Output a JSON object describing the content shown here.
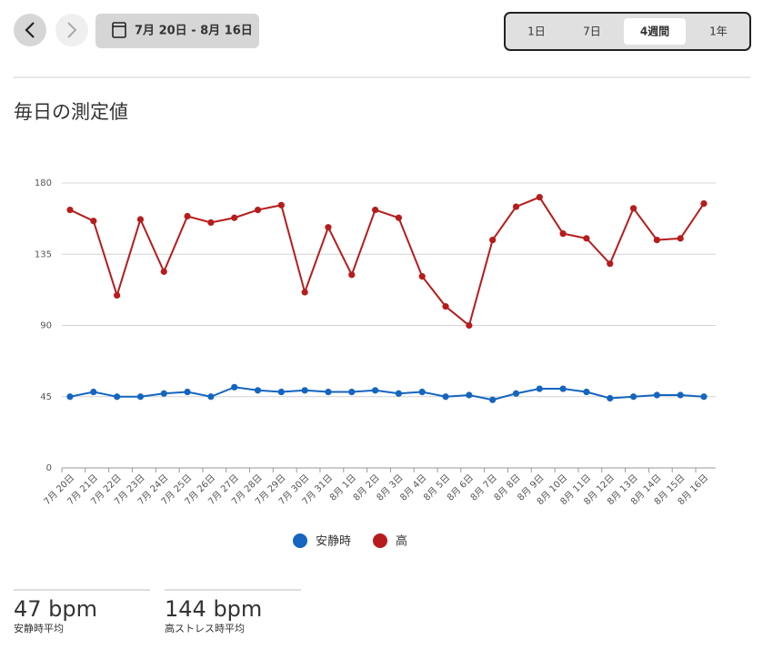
{
  "header": {
    "date_range": "7月 20日 - 8月 16日",
    "tabs": [
      "1日",
      "7日",
      "4週間",
      "1年"
    ],
    "selected_tab": 2
  },
  "section_title": "毎日の測定値",
  "chart_data": {
    "type": "line",
    "categories": [
      "7月 20日",
      "7月 21日",
      "7月 22日",
      "7月 23日",
      "7月 24日",
      "7月 25日",
      "7月 26日",
      "7月 27日",
      "7月 28日",
      "7月 29日",
      "7月 30日",
      "7月 31日",
      "8月 1日",
      "8月 2日",
      "8月 3日",
      "8月 4日",
      "8月 5日",
      "8月 6日",
      "8月 7日",
      "8月 8日",
      "8月 9日",
      "8月 10日",
      "8月 11日",
      "8月 12日",
      "8月 13日",
      "8月 14日",
      "8月 15日",
      "8月 16日"
    ],
    "series": [
      {
        "name": "安静時",
        "color": "#1565c0",
        "values": [
          45,
          48,
          45,
          45,
          47,
          48,
          45,
          51,
          49,
          48,
          49,
          48,
          48,
          49,
          47,
          48,
          45,
          46,
          43,
          47,
          50,
          50,
          48,
          44,
          45,
          46,
          46,
          45
        ]
      },
      {
        "name": "高",
        "color": "#b71c1c",
        "values": [
          163,
          156,
          109,
          157,
          124,
          159,
          155,
          158,
          163,
          166,
          111,
          152,
          122,
          163,
          158,
          121,
          102,
          90,
          144,
          165,
          171,
          148,
          145,
          129,
          164,
          144,
          145,
          167
        ]
      }
    ],
    "ylim": [
      0,
      180
    ],
    "yticks": [
      0,
      45,
      90,
      135,
      180
    ],
    "grid": true,
    "legend": "bottom"
  },
  "stats": [
    {
      "value": "47 bpm",
      "label": "安静時平均"
    },
    {
      "value": "144 bpm",
      "label": "高ストレス時平均"
    }
  ]
}
